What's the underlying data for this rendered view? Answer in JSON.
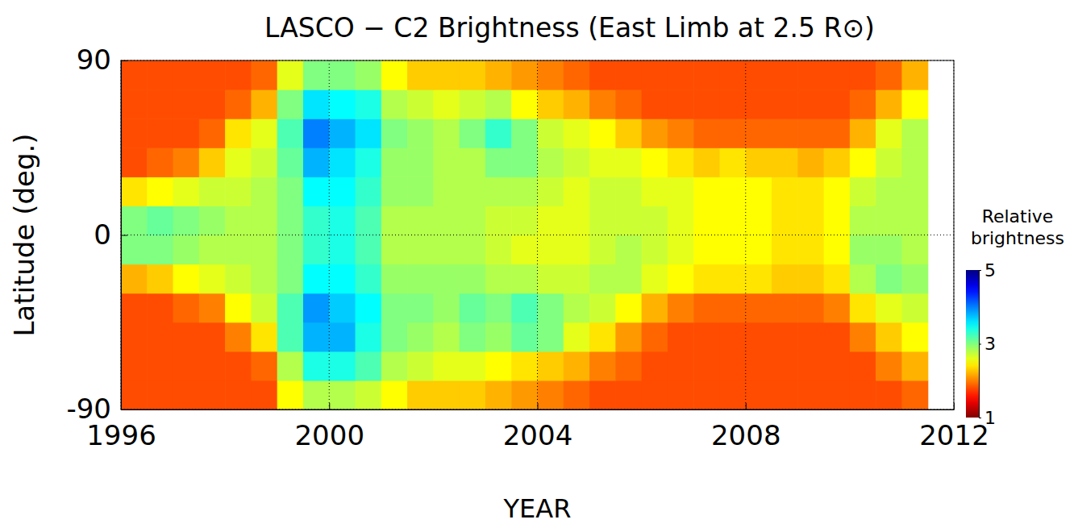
{
  "chart_data": {
    "type": "heatmap",
    "title": "LASCO − C2 Brightness (East Limb at 2.5 R⊙)",
    "x_label": "YEAR",
    "y_label": "Latitude (deg.)",
    "xlim": [
      1996,
      2012
    ],
    "xticks": [
      1996,
      2000,
      2004,
      2008,
      2012
    ],
    "ylim": [
      -90,
      90
    ],
    "yticks": [
      -90,
      0,
      90
    ],
    "grid": true,
    "x_bins": [
      1996,
      1996.5,
      1997,
      1997.5,
      1998,
      1998.5,
      1999,
      1999.5,
      2000,
      2000.5,
      2001,
      2001.5,
      2002,
      2002.5,
      2003,
      2003.5,
      2004,
      2004.5,
      2005,
      2005.5,
      2006,
      2006.5,
      2007,
      2007.5,
      2008,
      2008.5,
      2009,
      2009.5,
      2010,
      2010.5,
      2011,
      2011.5
    ],
    "y_bins": [
      -90,
      -75,
      -60,
      -45,
      -30,
      -15,
      0,
      15,
      30,
      45,
      60,
      75,
      90
    ],
    "cells": [
      [
        1.8,
        1.8,
        1.8,
        1.8,
        1.8,
        1.8,
        2.5,
        2.8,
        2.8,
        2.7,
        2.5,
        2.3,
        2.3,
        2.3,
        2.2,
        2.1,
        2.0,
        1.9,
        1.8,
        1.8,
        1.8,
        1.8,
        1.8,
        1.8,
        1.8,
        1.8,
        1.8,
        1.8,
        1.8,
        1.8,
        1.9
      ],
      [
        1.8,
        1.8,
        1.8,
        1.8,
        1.8,
        1.9,
        2.8,
        3.4,
        3.4,
        3.2,
        2.8,
        2.7,
        2.6,
        2.6,
        2.5,
        2.4,
        2.3,
        2.2,
        2.0,
        1.9,
        1.8,
        1.8,
        1.8,
        1.8,
        1.8,
        1.8,
        1.8,
        1.8,
        1.8,
        2.0,
        2.2
      ],
      [
        1.8,
        1.8,
        1.8,
        1.8,
        2.0,
        2.4,
        3.2,
        3.8,
        3.8,
        3.4,
        3.0,
        2.9,
        2.8,
        3.0,
        2.9,
        3.1,
        3.0,
        2.6,
        2.4,
        2.1,
        1.9,
        1.8,
        1.8,
        1.8,
        1.8,
        1.8,
        1.8,
        1.8,
        2.0,
        2.3,
        2.5
      ],
      [
        1.8,
        1.8,
        1.9,
        2.0,
        2.5,
        2.7,
        3.2,
        3.9,
        3.7,
        3.5,
        3.0,
        3.0,
        2.9,
        3.1,
        3.0,
        3.2,
        3.0,
        2.8,
        2.7,
        2.5,
        2.2,
        2.0,
        1.9,
        1.9,
        1.9,
        1.9,
        1.9,
        2.0,
        2.4,
        2.6,
        2.7
      ],
      [
        2.2,
        2.3,
        2.5,
        2.6,
        2.7,
        2.8,
        3.0,
        3.5,
        3.5,
        3.3,
        2.9,
        2.9,
        2.9,
        2.9,
        2.8,
        2.8,
        2.7,
        2.7,
        2.8,
        2.8,
        2.6,
        2.5,
        2.4,
        2.4,
        2.4,
        2.3,
        2.3,
        2.4,
        2.8,
        3.0,
        2.9
      ],
      [
        3.0,
        3.0,
        2.9,
        2.8,
        2.8,
        2.8,
        3.0,
        3.3,
        3.4,
        3.2,
        2.8,
        2.8,
        2.8,
        2.8,
        2.7,
        2.6,
        2.6,
        2.6,
        2.7,
        2.8,
        2.7,
        2.6,
        2.5,
        2.5,
        2.5,
        2.4,
        2.4,
        2.5,
        2.9,
        2.9,
        2.8
      ],
      [
        3.0,
        3.1,
        3.0,
        2.9,
        2.8,
        2.8,
        3.0,
        3.3,
        3.4,
        3.2,
        2.8,
        2.8,
        2.8,
        2.8,
        2.7,
        2.7,
        2.6,
        2.6,
        2.7,
        2.7,
        2.7,
        2.6,
        2.5,
        2.5,
        2.5,
        2.4,
        2.4,
        2.5,
        2.8,
        2.8,
        2.8
      ],
      [
        2.4,
        2.5,
        2.6,
        2.7,
        2.7,
        2.8,
        3.0,
        3.5,
        3.5,
        3.3,
        2.9,
        2.9,
        2.8,
        2.8,
        2.8,
        2.8,
        2.7,
        2.6,
        2.7,
        2.7,
        2.6,
        2.6,
        2.5,
        2.5,
        2.5,
        2.4,
        2.4,
        2.5,
        2.7,
        2.8,
        2.8
      ],
      [
        1.8,
        1.9,
        2.0,
        2.3,
        2.6,
        2.7,
        3.1,
        3.8,
        3.6,
        3.4,
        2.9,
        2.9,
        2.8,
        2.8,
        3.0,
        3.0,
        2.8,
        2.7,
        2.6,
        2.6,
        2.5,
        2.4,
        2.3,
        2.4,
        2.3,
        2.3,
        2.2,
        2.3,
        2.5,
        2.7,
        2.8
      ],
      [
        1.8,
        1.8,
        1.8,
        1.9,
        2.4,
        2.6,
        3.2,
        4.0,
        3.8,
        3.6,
        3.0,
        2.9,
        2.8,
        3.0,
        3.3,
        3.0,
        2.7,
        2.6,
        2.5,
        2.3,
        2.1,
        2.0,
        1.9,
        1.9,
        1.9,
        1.9,
        1.9,
        1.9,
        2.2,
        2.6,
        2.8
      ],
      [
        1.8,
        1.8,
        1.8,
        1.8,
        1.9,
        2.2,
        3.0,
        3.6,
        3.5,
        3.4,
        2.8,
        2.7,
        2.6,
        2.7,
        2.8,
        2.5,
        2.3,
        2.2,
        2.0,
        1.9,
        1.8,
        1.8,
        1.8,
        1.8,
        1.8,
        1.8,
        1.8,
        1.8,
        1.9,
        2.2,
        2.5
      ],
      [
        1.8,
        1.8,
        1.8,
        1.8,
        1.8,
        1.9,
        2.6,
        3.0,
        3.0,
        2.9,
        2.5,
        2.3,
        2.3,
        2.3,
        2.2,
        2.1,
        2.0,
        1.9,
        1.8,
        1.8,
        1.8,
        1.8,
        1.8,
        1.8,
        1.8,
        1.8,
        1.8,
        1.8,
        1.8,
        1.9,
        2.2
      ]
    ],
    "colorbar": {
      "label": "Relative brightness",
      "range": [
        1,
        5
      ],
      "ticks": [
        1,
        3,
        5
      ]
    }
  }
}
